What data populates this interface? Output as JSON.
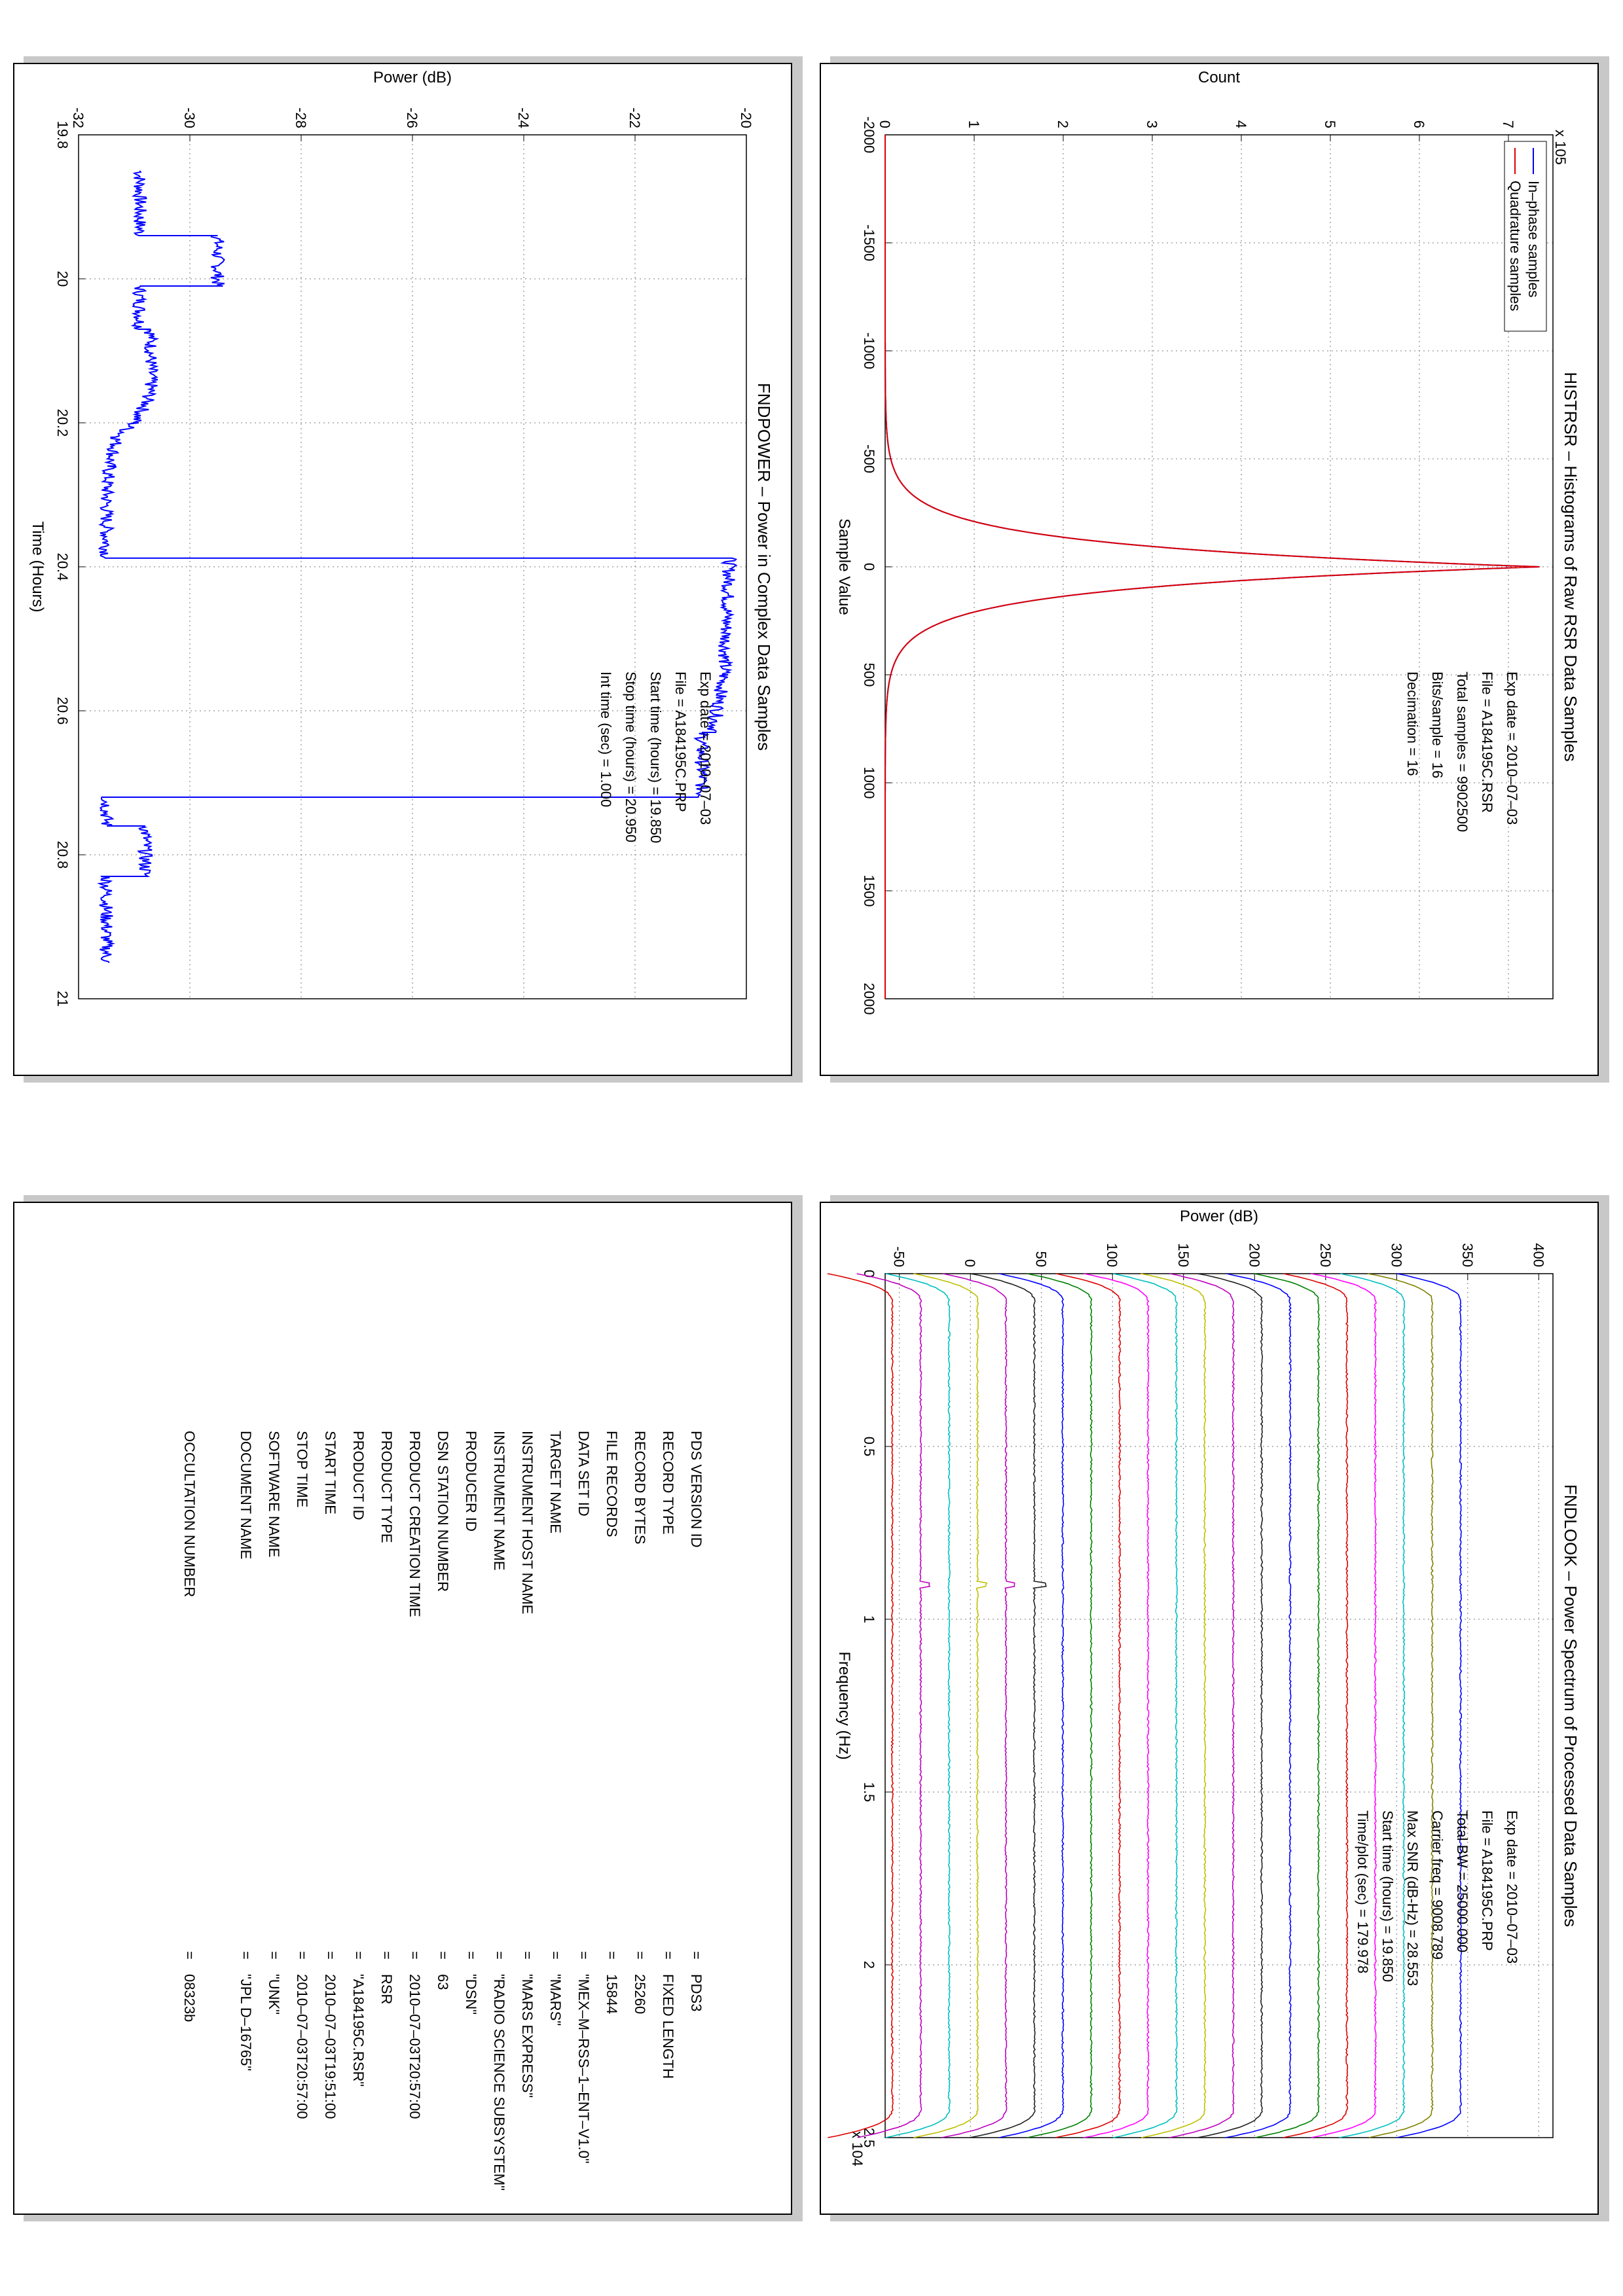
{
  "panels": {
    "histrsr": {
      "title": "HISTRSR – Histograms of Raw RSR Data Samples",
      "info": [
        "Exp date = 2010–07–03",
        "File = A184195C.RSR",
        "Total samples =  9902500",
        "Bits/sample    =       16",
        "Decimation    =       16"
      ]
    },
    "fndpower": {
      "title": "FNDPOWER – Power in Complex Data Samples",
      "info": [
        "Exp date = 2010–07–03",
        "File = A184195C.PRP",
        "Start time (hours) = 19.850",
        "Stop time (hours) = 20.950",
        "Int time (sec) =     1.000"
      ]
    },
    "fndlook": {
      "title": "FNDLOOK – Power Spectrum of Processed Data Samples",
      "info": [
        "Exp date = 2010–07–03",
        "File = A184195C.PRP",
        "Total BW =     25000.000",
        "Carrier freq =   9008.789",
        "Max SNR (dB-Hz) =    28.553",
        "Start time (hours) =  19.850",
        "Time/plot (sec) =    179.978"
      ]
    },
    "label": {
      "rows": [
        {
          "key": "PDS VERSION ID",
          "eq": "=",
          "value": "PDS3"
        },
        {
          "key": "RECORD TYPE",
          "eq": "=",
          "value": "FIXED LENGTH"
        },
        {
          "key": "RECORD BYTES",
          "eq": "=",
          "value": "25260"
        },
        {
          "key": "FILE RECORDS",
          "eq": "=",
          "value": "15844"
        },
        {
          "key": "DATA SET ID",
          "eq": "=",
          "value": "\"MEX–M–RSS–1–ENT–V1.0\""
        },
        {
          "key": "TARGET NAME",
          "eq": "=",
          "value": "\"MARS\""
        },
        {
          "key": "INSTRUMENT HOST NAME",
          "eq": "=",
          "value": "\"MARS EXPRESS\""
        },
        {
          "key": "INSTRUMENT NAME",
          "eq": "=",
          "value": "\"RADIO SCIENCE SUBSYSTEM\""
        },
        {
          "key": "PRODUCER ID",
          "eq": "=",
          "value": "\"DSN\""
        },
        {
          "key": "DSN STATION NUMBER",
          "eq": "=",
          "value": "63"
        },
        {
          "key": "PRODUCT CREATION TIME",
          "eq": "=",
          "value": "2010–07–03T20:57:00"
        },
        {
          "key": "PRODUCT TYPE",
          "eq": "=",
          "value": "RSR"
        },
        {
          "key": "PRODUCT ID",
          "eq": "=",
          "value": "\"A184195C.RSR\""
        },
        {
          "key": "START TIME",
          "eq": "=",
          "value": "2010–07–03T19:51:00"
        },
        {
          "key": "STOP TIME",
          "eq": "=",
          "value": "2010–07–03T20:57:00"
        },
        {
          "key": "SOFTWARE NAME",
          "eq": "=",
          "value": "\"UNK\""
        },
        {
          "key": "DOCUMENT NAME",
          "eq": "=",
          "value": "\"JPL D–16765\""
        },
        {
          "key": "",
          "eq": "",
          "value": ""
        },
        {
          "key": "OCCULTATION NUMBER",
          "eq": "=",
          "value": "08323b"
        }
      ]
    }
  },
  "chart_data": [
    {
      "type": "line",
      "title": "HISTRSR – Histograms of Raw RSR Data Samples",
      "xlabel": "Sample Value",
      "ylabel": "Count",
      "yexponent": "x 10^5",
      "xlim": [
        -2000,
        2000
      ],
      "ylim": [
        0,
        7.5
      ],
      "xticks": [
        -2000,
        -1500,
        -1000,
        -500,
        0,
        500,
        1000,
        1500,
        2000
      ],
      "yticks": [
        0,
        1,
        2,
        3,
        4,
        5,
        6,
        7
      ],
      "grid": true,
      "legend": {
        "placement": "top-left",
        "entries": [
          "In–phase samples",
          "Quadrature samples"
        ]
      },
      "series": [
        {
          "name": "In–phase samples",
          "color": "#0000ff",
          "x": [
            -2000,
            -600,
            -400,
            -300,
            -200,
            -150,
            -100,
            -50,
            0,
            50,
            100,
            150,
            200,
            300,
            400,
            600,
            2000
          ],
          "y": [
            0,
            0.01,
            0.11,
            0.37,
            1.08,
            1.81,
            2.87,
            5.31,
            7.35,
            5.31,
            2.87,
            1.81,
            1.08,
            0.37,
            0.11,
            0.01,
            0
          ]
        },
        {
          "name": "Quadrature samples",
          "color": "#dd0000",
          "x": [
            -2000,
            -600,
            -400,
            -300,
            -200,
            -150,
            -100,
            -50,
            0,
            50,
            100,
            150,
            200,
            300,
            400,
            600,
            2000
          ],
          "y": [
            0,
            0.01,
            0.11,
            0.37,
            1.08,
            1.81,
            2.87,
            5.31,
            7.35,
            5.31,
            2.87,
            1.81,
            1.08,
            0.37,
            0.11,
            0.01,
            0
          ]
        }
      ]
    },
    {
      "type": "line",
      "title": "FNDPOWER – Power in Complex Data Samples",
      "xlabel": "Time (Hours)",
      "ylabel": "Power (dB)",
      "xlim": [
        19.8,
        21
      ],
      "ylim": [
        -32,
        -20
      ],
      "xticks": [
        19.8,
        20,
        20.2,
        20.4,
        20.6,
        20.8,
        21
      ],
      "yticks": [
        -32,
        -30,
        -28,
        -26,
        -24,
        -22,
        -20
      ],
      "grid": true,
      "series": [
        {
          "name": "",
          "color": "#0000ff",
          "x": [
            19.85,
            19.94,
            19.94,
            20.01,
            20.01,
            20.07,
            20.07,
            20.155,
            20.175,
            20.2,
            20.22,
            20.26,
            20.3,
            20.388,
            20.388,
            20.55,
            20.63,
            20.63,
            20.72,
            20.72,
            20.76,
            20.76,
            20.83,
            20.83,
            20.95
          ],
          "y": [
            -30.9,
            -30.9,
            -29.5,
            -29.5,
            -30.9,
            -30.9,
            -30.7,
            -30.7,
            -30.8,
            -31.0,
            -31.3,
            -31.45,
            -31.5,
            -31.5,
            -20.3,
            -20.4,
            -20.6,
            -20.8,
            -20.8,
            -31.5,
            -31.5,
            -30.8,
            -30.8,
            -31.5,
            -31.5
          ]
        }
      ]
    },
    {
      "type": "line",
      "title": "FNDLOOK – Power Spectrum of Processed Data Samples",
      "xlabel": "Frequency (Hz)",
      "ylabel": "Power (dB)",
      "xexponent": "x 10^4",
      "xlim": [
        0,
        2.5
      ],
      "ylim": [
        -60,
        410
      ],
      "xticks": [
        0,
        0.5,
        1,
        1.5,
        2,
        2.5
      ],
      "yticks": [
        -50,
        0,
        50,
        100,
        150,
        200,
        250,
        300,
        350,
        400
      ],
      "grid": true,
      "series": [
        {
          "color": "#0000ff",
          "values_offset_db": 345,
          "peak_db": 0
        },
        {
          "color": "#808000",
          "values_offset_db": 325,
          "peak_db": 0
        },
        {
          "color": "#00bfbf",
          "values_offset_db": 305,
          "peak_db": 0
        },
        {
          "color": "#ff00ff",
          "values_offset_db": 285,
          "peak_db": 0
        },
        {
          "color": "#dd0000",
          "values_offset_db": 265,
          "peak_db": 0
        },
        {
          "color": "#008000",
          "values_offset_db": 245,
          "peak_db": 0
        },
        {
          "color": "#0000ff",
          "values_offset_db": 225,
          "peak_db": 0
        },
        {
          "color": "#202020",
          "values_offset_db": 205,
          "peak_db": 0
        },
        {
          "color": "#bf00bf",
          "values_offset_db": 185,
          "peak_db": 0
        },
        {
          "color": "#bfbf00",
          "values_offset_db": 165,
          "peak_db": 0
        },
        {
          "color": "#00bfbf",
          "values_offset_db": 145,
          "peak_db": 0
        },
        {
          "color": "#ff00ff",
          "values_offset_db": 125,
          "peak_db": 0
        },
        {
          "color": "#dd0000",
          "values_offset_db": 105,
          "peak_db": 0
        },
        {
          "color": "#008000",
          "values_offset_db": 85,
          "peak_db": 0
        },
        {
          "color": "#0000ff",
          "values_offset_db": 65,
          "peak_db": 0
        },
        {
          "color": "#202020",
          "values_offset_db": 45,
          "peak_db": 8
        },
        {
          "color": "#bf00bf",
          "values_offset_db": 25,
          "peak_db": 6
        },
        {
          "color": "#bfbf00",
          "values_offset_db": 5,
          "peak_db": 6
        },
        {
          "color": "#00bfbf",
          "values_offset_db": -15,
          "peak_db": 0
        },
        {
          "color": "#bf00bf",
          "values_offset_db": -35,
          "peak_db": 6
        },
        {
          "color": "#dd0000",
          "values_offset_db": -55,
          "peak_db": 0
        }
      ]
    }
  ]
}
